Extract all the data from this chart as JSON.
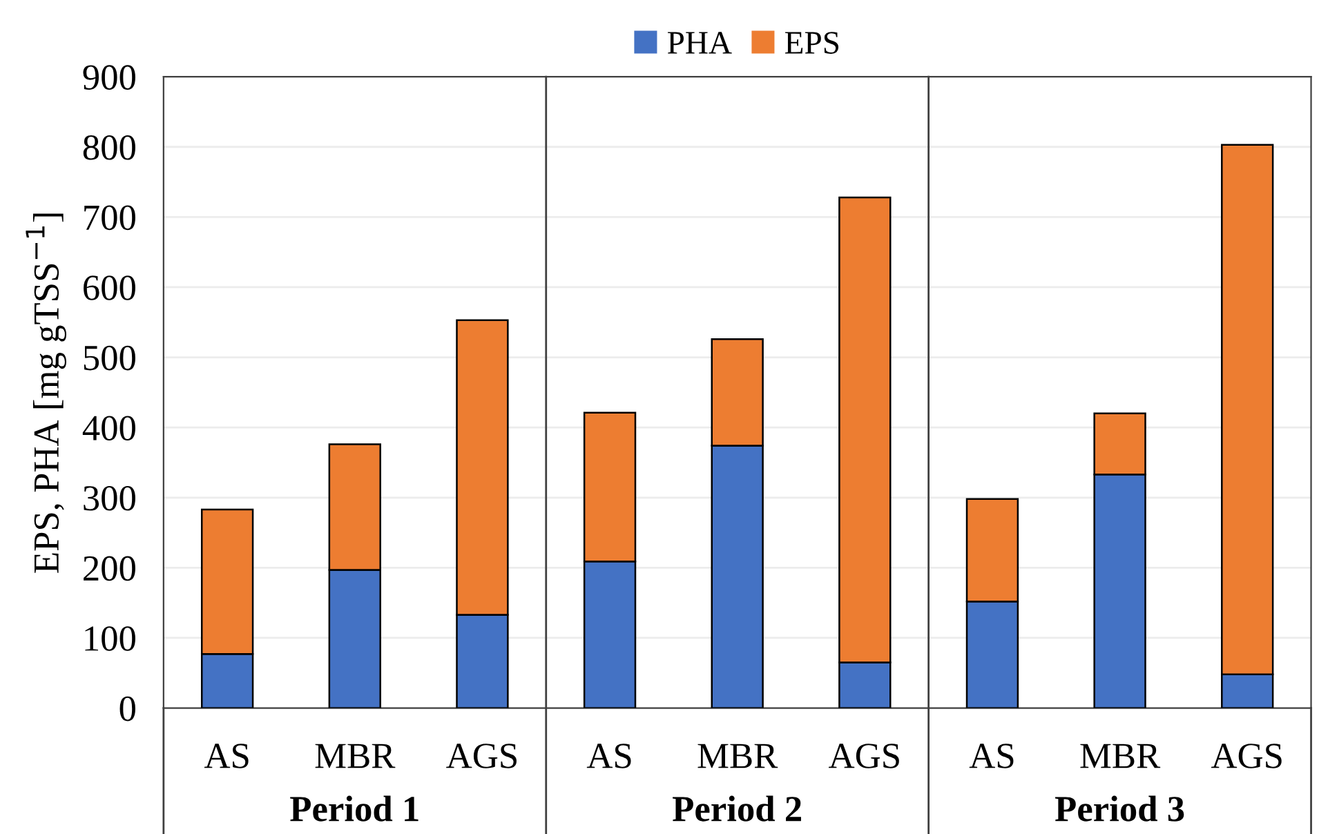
{
  "chart_data": {
    "type": "bar",
    "stacked": true,
    "ylabel": "EPS, PHA [mg gTSS$^{−1}$]",
    "categories": [
      "AS",
      "MBR",
      "AGS",
      "AS",
      "MBR",
      "AGS",
      "AS",
      "MBR",
      "AGS"
    ],
    "series": [
      {
        "name": "PHA",
        "color": "#4472c4",
        "values": [
          77,
          197,
          133,
          209,
          374,
          65,
          152,
          333,
          48
        ]
      },
      {
        "name": "EPS",
        "color": "#ed7d31",
        "values": [
          206,
          179,
          420,
          212,
          152,
          663,
          146,
          87,
          755
        ]
      }
    ],
    "ylim": [
      0,
      900
    ],
    "yticks": [
      0,
      100,
      200,
      300,
      400,
      500,
      600,
      700,
      800,
      900
    ],
    "grid": "y",
    "legend": "top",
    "annotations": [
      "Period 1",
      "Period 2",
      "Period 3"
    ]
  }
}
